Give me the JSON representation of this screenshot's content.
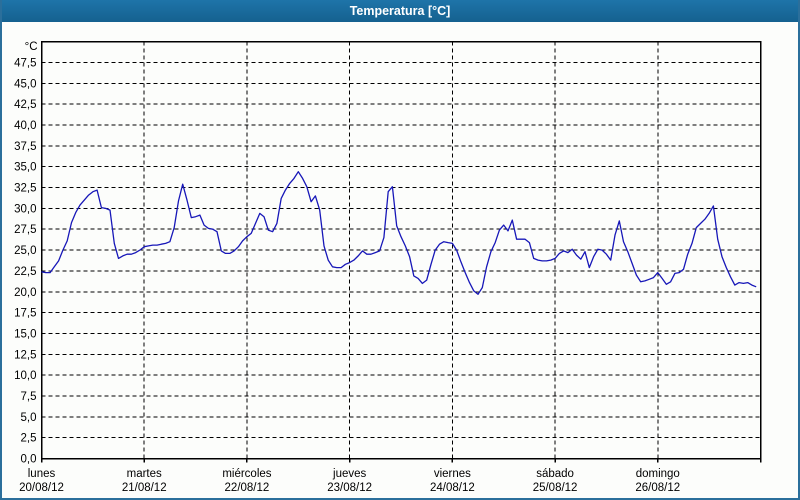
{
  "window": {
    "title": "Temperatura [°C]"
  },
  "colors": {
    "titlebar_bg": "#1A6AA0",
    "titlebar_text": "#FFFFFF",
    "window_border": "#2B6F9B",
    "background": "#FCFDFB",
    "plot_border": "#000000",
    "gridline": "#000000",
    "series_line": "#1717B8",
    "label_text": "#000000"
  },
  "chart_data": {
    "type": "line",
    "title": "Temperatura [°C]",
    "grid": "dashed",
    "legend": "none",
    "y_axis": {
      "unit_label": "°C",
      "min": 0,
      "max": 47.5,
      "tick_step": 2.5,
      "tick_labels": [
        "0,0",
        "2,5",
        "5,0",
        "7,5",
        "10,0",
        "12,5",
        "15,0",
        "17,5",
        "20,0",
        "22,5",
        "25,0",
        "27,5",
        "30,0",
        "32,5",
        "35,0",
        "37,5",
        "40,0",
        "42,5",
        "45,0",
        "47,5"
      ]
    },
    "x_axis": {
      "days": [
        {
          "name": "lunes",
          "date": "20/08/12"
        },
        {
          "name": "martes",
          "date": "21/08/12"
        },
        {
          "name": "miércoles",
          "date": "22/08/12"
        },
        {
          "name": "jueves",
          "date": "23/08/12"
        },
        {
          "name": "viernes",
          "date": "24/08/12"
        },
        {
          "name": "sábado",
          "date": "25/08/12"
        },
        {
          "name": "domingo",
          "date": "26/08/12"
        }
      ]
    },
    "series": [
      {
        "name": "Temperatura",
        "points_per_day": 24,
        "values": [
          22.4,
          22.3,
          22.3,
          23.0,
          23.7,
          25.0,
          26.1,
          28.3,
          29.5,
          30.4,
          31.0,
          31.6,
          32.0,
          32.2,
          30.1,
          30.0,
          29.8,
          25.8,
          24.0,
          24.3,
          24.5,
          24.5,
          24.7,
          25.0,
          25.4,
          25.5,
          25.6,
          25.6,
          25.7,
          25.8,
          26.0,
          27.7,
          30.9,
          32.9,
          31.0,
          28.9,
          29.0,
          29.2,
          28.0,
          27.6,
          27.5,
          27.2,
          24.9,
          24.6,
          24.6,
          24.9,
          25.4,
          26.1,
          26.6,
          27.0,
          28.2,
          29.4,
          29.0,
          27.4,
          27.2,
          28.2,
          31.2,
          32.2,
          33.0,
          33.6,
          34.4,
          33.6,
          32.6,
          30.8,
          31.5,
          29.8,
          25.5,
          23.8,
          23.0,
          22.9,
          22.9,
          23.3,
          23.5,
          23.8,
          24.3,
          24.9,
          24.5,
          24.5,
          24.7,
          24.9,
          26.5,
          32.0,
          32.6,
          27.9,
          26.6,
          25.5,
          24.2,
          21.9,
          21.6,
          21.0,
          21.4,
          23.3,
          25.0,
          25.7,
          26.0,
          25.9,
          25.8,
          25.0,
          23.6,
          22.3,
          21.1,
          20.1,
          19.7,
          20.5,
          23.0,
          24.8,
          25.9,
          27.4,
          28.0,
          27.3,
          28.6,
          26.3,
          26.3,
          26.3,
          25.9,
          24.0,
          23.8,
          23.7,
          23.7,
          23.8,
          24.0,
          24.6,
          24.9,
          24.7,
          25.1,
          24.4,
          23.9,
          24.8,
          22.9,
          24.2,
          25.1,
          25.0,
          24.5,
          23.8,
          26.8,
          28.5,
          26.0,
          24.8,
          23.4,
          22.0,
          21.2,
          21.3,
          21.5,
          21.7,
          22.3,
          21.6,
          20.9,
          21.2,
          22.2,
          22.3,
          22.7,
          24.5,
          25.8,
          27.7,
          28.2,
          28.7,
          29.4,
          30.3,
          26.3,
          24.2,
          22.9,
          21.8,
          20.8,
          21.1,
          21.0,
          21.1,
          20.8,
          20.6
        ]
      }
    ]
  }
}
